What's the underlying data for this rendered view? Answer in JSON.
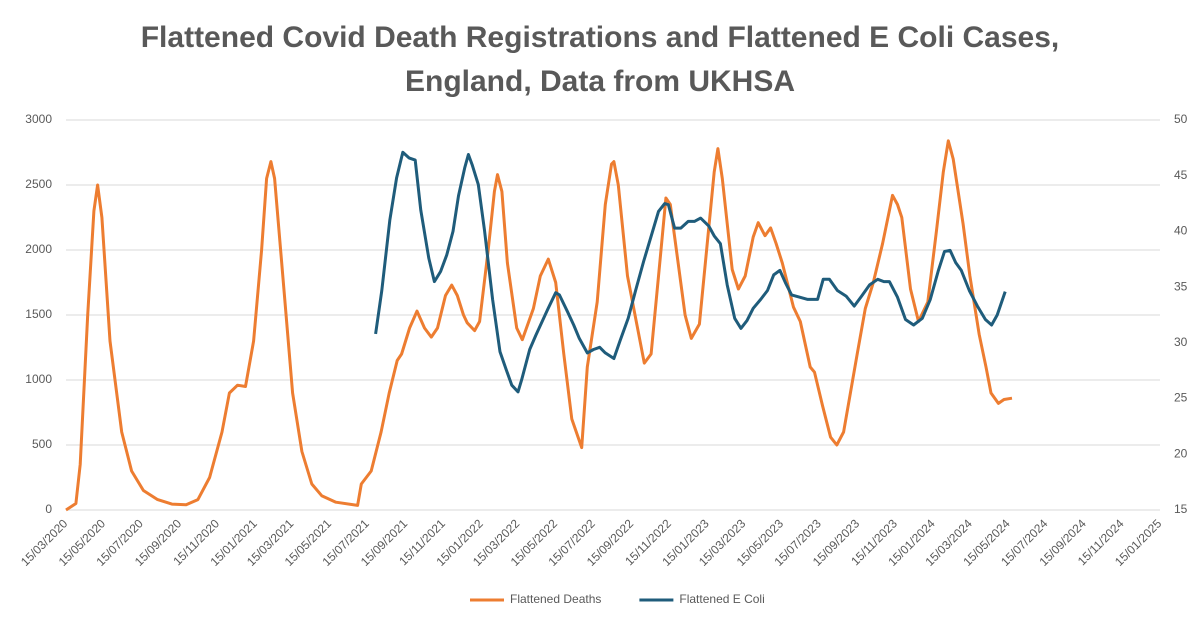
{
  "chart_data": {
    "type": "line",
    "title": "Flattened Covid Death Registrations and Flattened E Coli Cases, England, Data from UKHSA",
    "xlim": [
      "15/03/2020",
      "15/01/2025"
    ],
    "xticks": [
      "15/03/2020",
      "15/05/2020",
      "15/07/2020",
      "15/09/2020",
      "15/11/2020",
      "15/01/2021",
      "15/03/2021",
      "15/05/2021",
      "15/07/2021",
      "15/09/2021",
      "15/11/2021",
      "15/01/2022",
      "15/03/2022",
      "15/05/2022",
      "15/07/2022",
      "15/09/2022",
      "15/11/2022",
      "15/01/2023",
      "15/03/2023",
      "15/05/2023",
      "15/07/2023",
      "15/09/2023",
      "15/11/2023",
      "15/01/2024",
      "15/03/2024",
      "15/05/2024",
      "15/07/2024",
      "15/09/2024",
      "15/11/2024",
      "15/01/2025"
    ],
    "ylim": [
      0,
      3000
    ],
    "yticks": [
      0,
      500,
      1000,
      1500,
      2000,
      2500,
      3000
    ],
    "y2lim": [
      15,
      50
    ],
    "y2ticks": [
      15,
      20,
      25,
      30,
      35,
      40,
      45,
      50
    ],
    "grid": true,
    "legend": "bottom",
    "series": [
      {
        "name": "Flattened Deaths",
        "color": "#ed7d31",
        "axis": "y",
        "x": [
          "15/03/2020",
          "31/03/2020",
          "07/04/2020",
          "19/04/2020",
          "29/04/2020",
          "05/05/2020",
          "12/05/2020",
          "25/05/2020",
          "13/06/2020",
          "29/06/2020",
          "18/07/2020",
          "10/08/2020",
          "02/09/2020",
          "25/09/2020",
          "14/10/2020",
          "02/11/2020",
          "22/11/2020",
          "04/12/2020",
          "17/12/2020",
          "30/12/2020",
          "12/01/2021",
          "25/01/2021",
          "02/02/2021",
          "09/02/2021",
          "15/02/2021",
          "02/03/2021",
          "16/03/2021",
          "31/03/2021",
          "16/04/2021",
          "02/05/2021",
          "25/05/2021",
          "29/06/2021",
          "05/07/2021",
          "21/07/2021",
          "06/08/2021",
          "19/08/2021",
          "01/09/2021",
          "08/09/2021",
          "21/09/2021",
          "03/10/2021",
          "15/10/2021",
          "26/10/2021",
          "05/11/2021",
          "18/11/2021",
          "28/11/2021",
          "07/12/2021",
          "17/12/2021",
          "23/12/2021",
          "04/01/2022",
          "12/01/2022",
          "26/01/2022",
          "05/02/2022",
          "10/02/2022",
          "17/02/2022",
          "26/02/2022",
          "13/03/2022",
          "22/03/2022",
          "09/04/2022",
          "20/04/2022",
          "03/05/2022",
          "15/05/2022",
          "28/05/2022",
          "10/06/2022",
          "26/06/2022",
          "05/07/2022",
          "21/07/2022",
          "03/08/2022",
          "13/08/2022",
          "17/08/2022",
          "24/08/2022",
          "08/09/2022",
          "05/10/2022",
          "16/10/2022",
          "01/11/2022",
          "09/11/2022",
          "16/11/2022",
          "10/12/2022",
          "20/12/2022",
          "02/01/2023",
          "26/01/2023",
          "01/02/2023",
          "08/02/2023",
          "24/02/2023",
          "06/03/2023",
          "17/03/2023",
          "30/03/2023",
          "07/04/2023",
          "18/04/2023",
          "27/04/2023",
          "06/05/2023",
          "16/05/2023",
          "03/06/2023",
          "14/06/2023",
          "30/06/2023",
          "07/07/2023",
          "20/07/2023",
          "02/08/2023",
          "12/08/2023",
          "23/08/2023",
          "03/09/2023",
          "14/09/2023",
          "27/09/2023",
          "10/10/2023",
          "25/10/2023",
          "10/11/2023",
          "18/11/2023",
          "25/11/2023",
          "09/12/2023",
          "22/12/2023",
          "06/01/2024",
          "20/01/2024",
          "31/01/2024",
          "08/02/2024",
          "16/02/2024",
          "03/03/2024",
          "14/03/2024",
          "29/03/2024",
          "09/04/2024",
          "17/04/2024",
          "29/04/2024",
          "08/05/2024",
          "21/05/2024"
        ],
        "values": [
          0,
          50,
          350,
          1500,
          2300,
          2500,
          2250,
          1300,
          600,
          300,
          150,
          80,
          45,
          40,
          80,
          250,
          600,
          900,
          960,
          950,
          1300,
          2000,
          2550,
          2680,
          2550,
          1700,
          900,
          450,
          200,
          110,
          60,
          35,
          200,
          300,
          600,
          900,
          1150,
          1200,
          1400,
          1530,
          1400,
          1330,
          1400,
          1650,
          1730,
          1650,
          1500,
          1440,
          1380,
          1450,
          2000,
          2450,
          2580,
          2450,
          1900,
          1400,
          1310,
          1550,
          1800,
          1930,
          1750,
          1200,
          700,
          480,
          1100,
          1600,
          2350,
          2660,
          2680,
          2500,
          1800,
          1130,
          1200,
          2000,
          2400,
          2350,
          1500,
          1320,
          1430,
          2600,
          2780,
          2550,
          1850,
          1700,
          1800,
          2100,
          2210,
          2110,
          2170,
          2050,
          1900,
          1560,
          1450,
          1100,
          1060,
          800,
          560,
          500,
          600,
          900,
          1200,
          1550,
          1750,
          2050,
          2420,
          2350,
          2250,
          1700,
          1450,
          1600,
          2150,
          2600,
          2840,
          2700,
          2200,
          1800,
          1350,
          1100,
          900,
          820,
          850,
          860
        ]
      },
      {
        "name": "Flattened E Coli",
        "color": "#1f5c7b",
        "axis": "y2",
        "x": [
          "28/07/2021",
          "07/08/2021",
          "20/08/2021",
          "31/08/2021",
          "10/09/2021",
          "20/09/2021",
          "30/09/2021",
          "09/10/2021",
          "22/10/2021",
          "31/10/2021",
          "10/11/2021",
          "20/11/2021",
          "30/11/2021",
          "09/12/2021",
          "19/12/2021",
          "25/12/2021",
          "31/12/2021",
          "10/01/2022",
          "20/01/2022",
          "02/02/2022",
          "14/02/2022",
          "24/02/2022",
          "05/03/2022",
          "15/03/2022",
          "21/03/2022",
          "03/04/2022",
          "13/04/2022",
          "02/05/2022",
          "15/05/2022",
          "21/05/2022",
          "03/06/2022",
          "13/06/2022",
          "22/06/2022",
          "05/07/2022",
          "15/07/2022",
          "25/07/2022",
          "03/08/2022",
          "17/08/2022",
          "27/08/2022",
          "09/09/2022",
          "21/09/2022",
          "04/10/2022",
          "19/10/2022",
          "28/10/2022",
          "07/11/2022",
          "13/11/2022",
          "23/11/2022",
          "03/12/2022",
          "15/12/2022",
          "25/12/2022",
          "04/01/2023",
          "17/01/2023",
          "26/01/2023",
          "05/02/2023",
          "16/02/2023",
          "28/02/2023",
          "10/03/2023",
          "20/03/2023",
          "30/03/2023",
          "11/04/2023",
          "22/04/2023",
          "02/05/2023",
          "12/05/2023",
          "21/05/2023",
          "31/05/2023",
          "13/06/2023",
          "26/06/2023",
          "12/07/2023",
          "21/07/2023",
          "31/07/2023",
          "13/08/2023",
          "27/08/2023",
          "09/09/2023",
          "21/09/2023",
          "04/10/2023",
          "17/10/2023",
          "27/10/2023",
          "05/11/2023",
          "18/11/2023",
          "01/12/2023",
          "14/12/2023",
          "28/12/2023",
          "10/01/2024",
          "23/01/2024",
          "02/02/2024",
          "11/02/2024",
          "20/02/2024",
          "29/02/2024",
          "13/03/2024",
          "26/03/2024",
          "08/04/2024",
          "18/04/2024",
          "27/04/2024",
          "10/05/2024"
        ],
        "values": [
          30.8,
          34.7,
          41,
          44.8,
          47.1,
          46.6,
          46.4,
          41.9,
          37.6,
          35.5,
          36.4,
          37.9,
          40,
          43.2,
          45.7,
          46.9,
          46,
          44.2,
          40.1,
          33.9,
          29.2,
          27.6,
          26.2,
          25.6,
          26.7,
          29.4,
          30.7,
          33,
          34.5,
          34.3,
          32.8,
          31.6,
          30.4,
          29.1,
          29.4,
          29.6,
          29.1,
          28.6,
          30.2,
          32.2,
          34.7,
          37.3,
          40.1,
          41.8,
          42.5,
          42.4,
          40.3,
          40.3,
          40.9,
          40.9,
          41.2,
          40.5,
          39.6,
          38.9,
          35.2,
          32.2,
          31.3,
          32,
          33.1,
          33.9,
          34.7,
          36.1,
          36.5,
          35.4,
          34.3,
          34.1,
          33.9,
          33.9,
          35.7,
          35.7,
          34.7,
          34.2,
          33.3,
          34.2,
          35.2,
          35.7,
          35.5,
          35.5,
          34.1,
          32.1,
          31.6,
          32.2,
          33.9,
          36.5,
          38.2,
          38.3,
          37.2,
          36.5,
          34.7,
          33.3,
          32.1,
          31.6,
          32.5,
          34.6
        ]
      }
    ]
  }
}
